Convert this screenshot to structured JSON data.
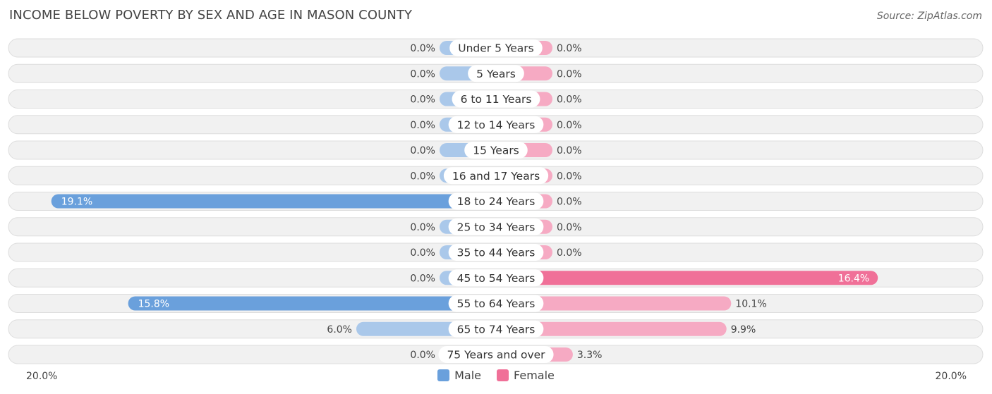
{
  "header": {
    "title": "INCOME BELOW POVERTY BY SEX AND AGE IN MASON COUNTY",
    "source": "Source: ZipAtlas.com"
  },
  "colors": {
    "male_bar": "#aac8ea",
    "male_bar_strong": "#6aa0dc",
    "female_bar": "#f6aac3",
    "female_bar_strong": "#f07098",
    "row_bg": "#f1f1f1",
    "row_border": "#dddddd"
  },
  "chart_data": {
    "type": "bar",
    "orientation": "horizontal-diverging",
    "title": "INCOME BELOW POVERTY BY SEX AND AGE IN MASON COUNTY",
    "categories": [
      "Under 5 Years",
      "5 Years",
      "6 to 11 Years",
      "12 to 14 Years",
      "15 Years",
      "16 and 17 Years",
      "18 to 24 Years",
      "25 to 34 Years",
      "35 to 44 Years",
      "45 to 54 Years",
      "55 to 64 Years",
      "65 to 74 Years",
      "75 Years and over"
    ],
    "series": [
      {
        "name": "Male",
        "values": [
          0.0,
          0.0,
          0.0,
          0.0,
          0.0,
          0.0,
          19.1,
          0.0,
          0.0,
          0.0,
          15.8,
          6.0,
          0.0
        ],
        "labels": [
          "0.0%",
          "0.0%",
          "0.0%",
          "0.0%",
          "0.0%",
          "0.0%",
          "19.1%",
          "0.0%",
          "0.0%",
          "0.0%",
          "15.8%",
          "6.0%",
          "0.0%"
        ]
      },
      {
        "name": "Female",
        "values": [
          0.0,
          0.0,
          0.0,
          0.0,
          0.0,
          0.0,
          0.0,
          0.0,
          0.0,
          16.4,
          10.1,
          9.9,
          3.3
        ],
        "labels": [
          "0.0%",
          "0.0%",
          "0.0%",
          "0.0%",
          "0.0%",
          "0.0%",
          "0.0%",
          "0.0%",
          "0.0%",
          "16.4%",
          "10.1%",
          "9.9%",
          "3.3%"
        ]
      }
    ],
    "xlim": [
      -20,
      20
    ],
    "axis_left_label": "20.0%",
    "axis_right_label": "20.0%",
    "legend": [
      "Male",
      "Female"
    ],
    "legend_position": "bottom-center"
  }
}
